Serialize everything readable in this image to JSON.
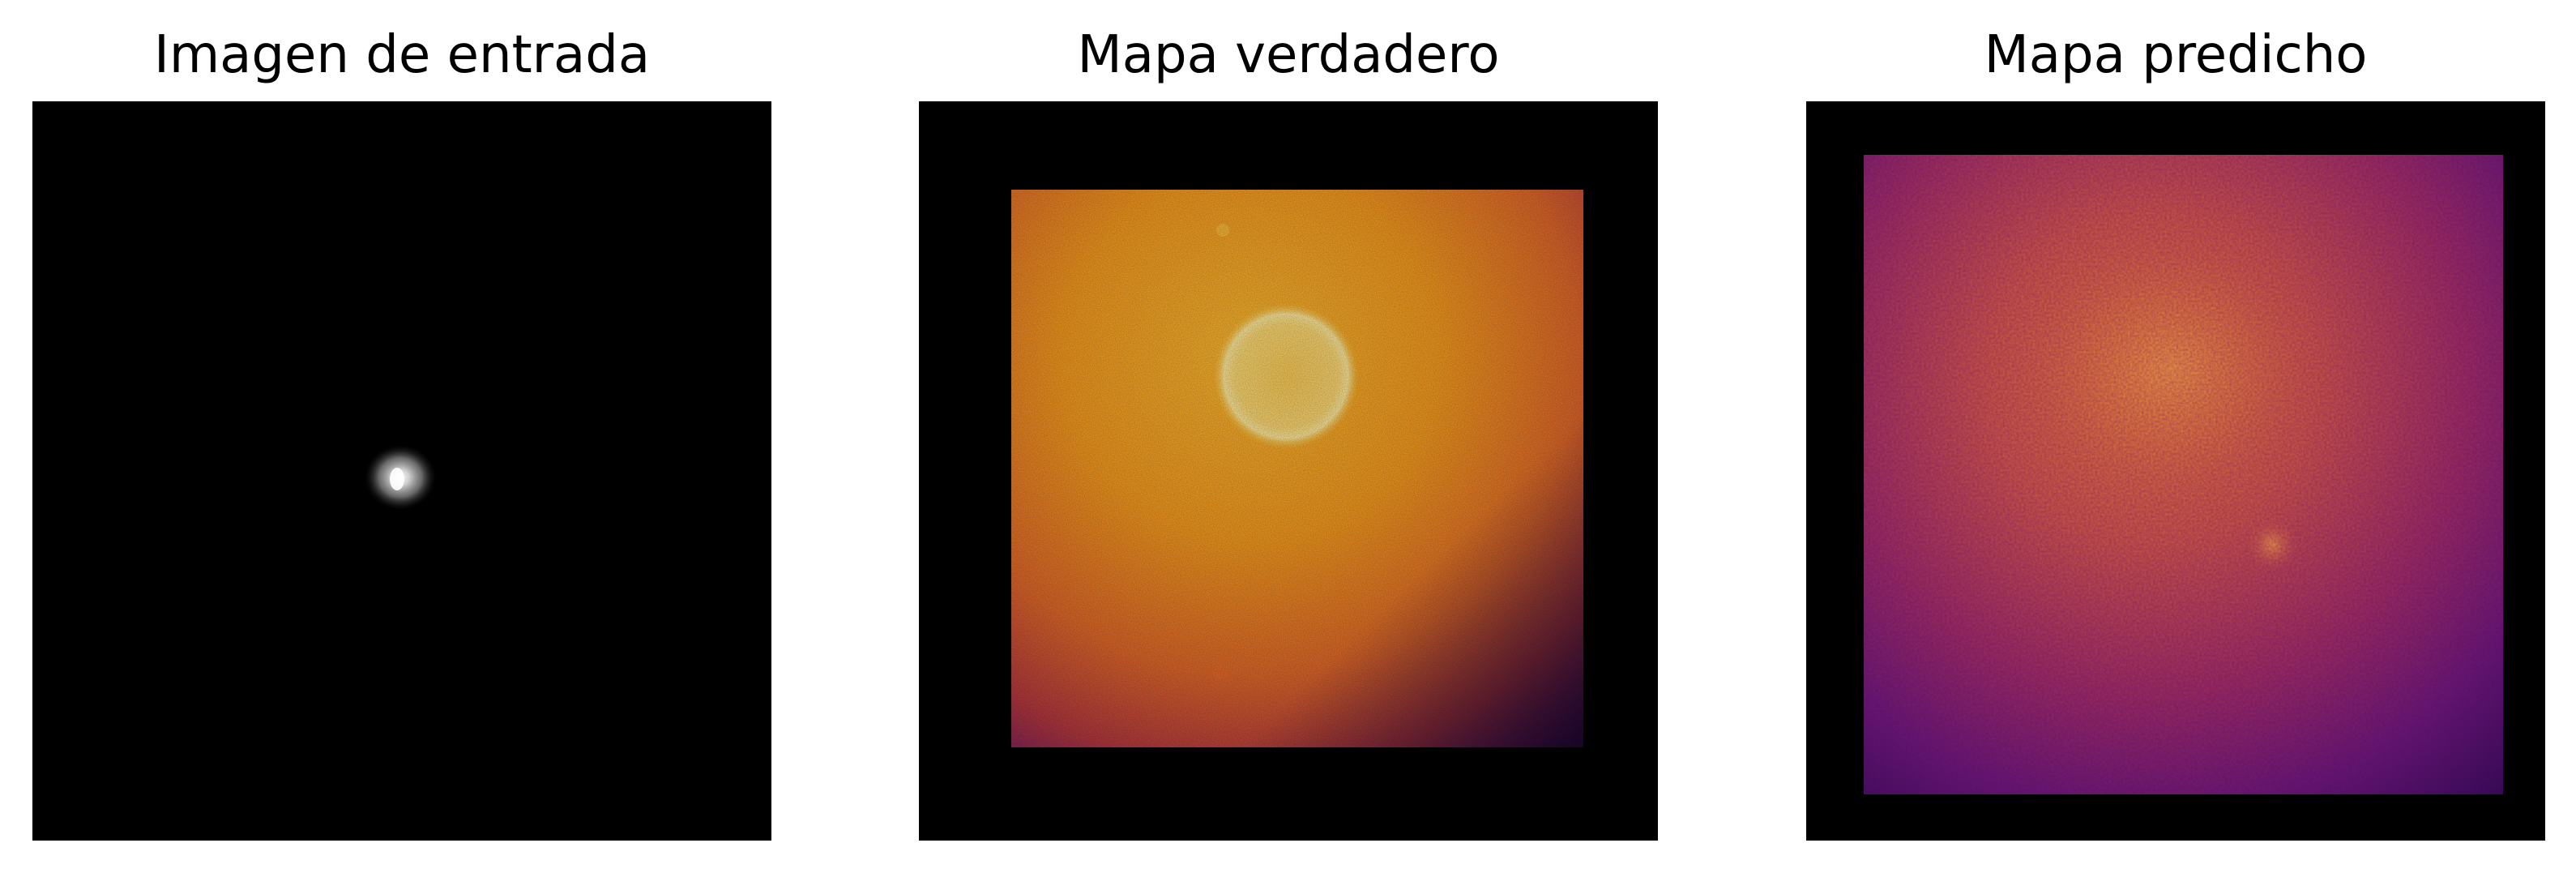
{
  "figure": {
    "panels": [
      {
        "title": "Imagen de entrada",
        "image": "grayscale-input-blob"
      },
      {
        "title": "Mapa verdadero",
        "image": "inferno-colormap-ground-truth"
      },
      {
        "title": "Mapa predicho",
        "image": "inferno-colormap-prediction"
      }
    ],
    "colors": {
      "background": "#ffffff",
      "frame": "#000000",
      "inferno_bright": "#fde27a",
      "inferno_orange": "#f08a18",
      "inferno_purple": "#541068"
    }
  }
}
